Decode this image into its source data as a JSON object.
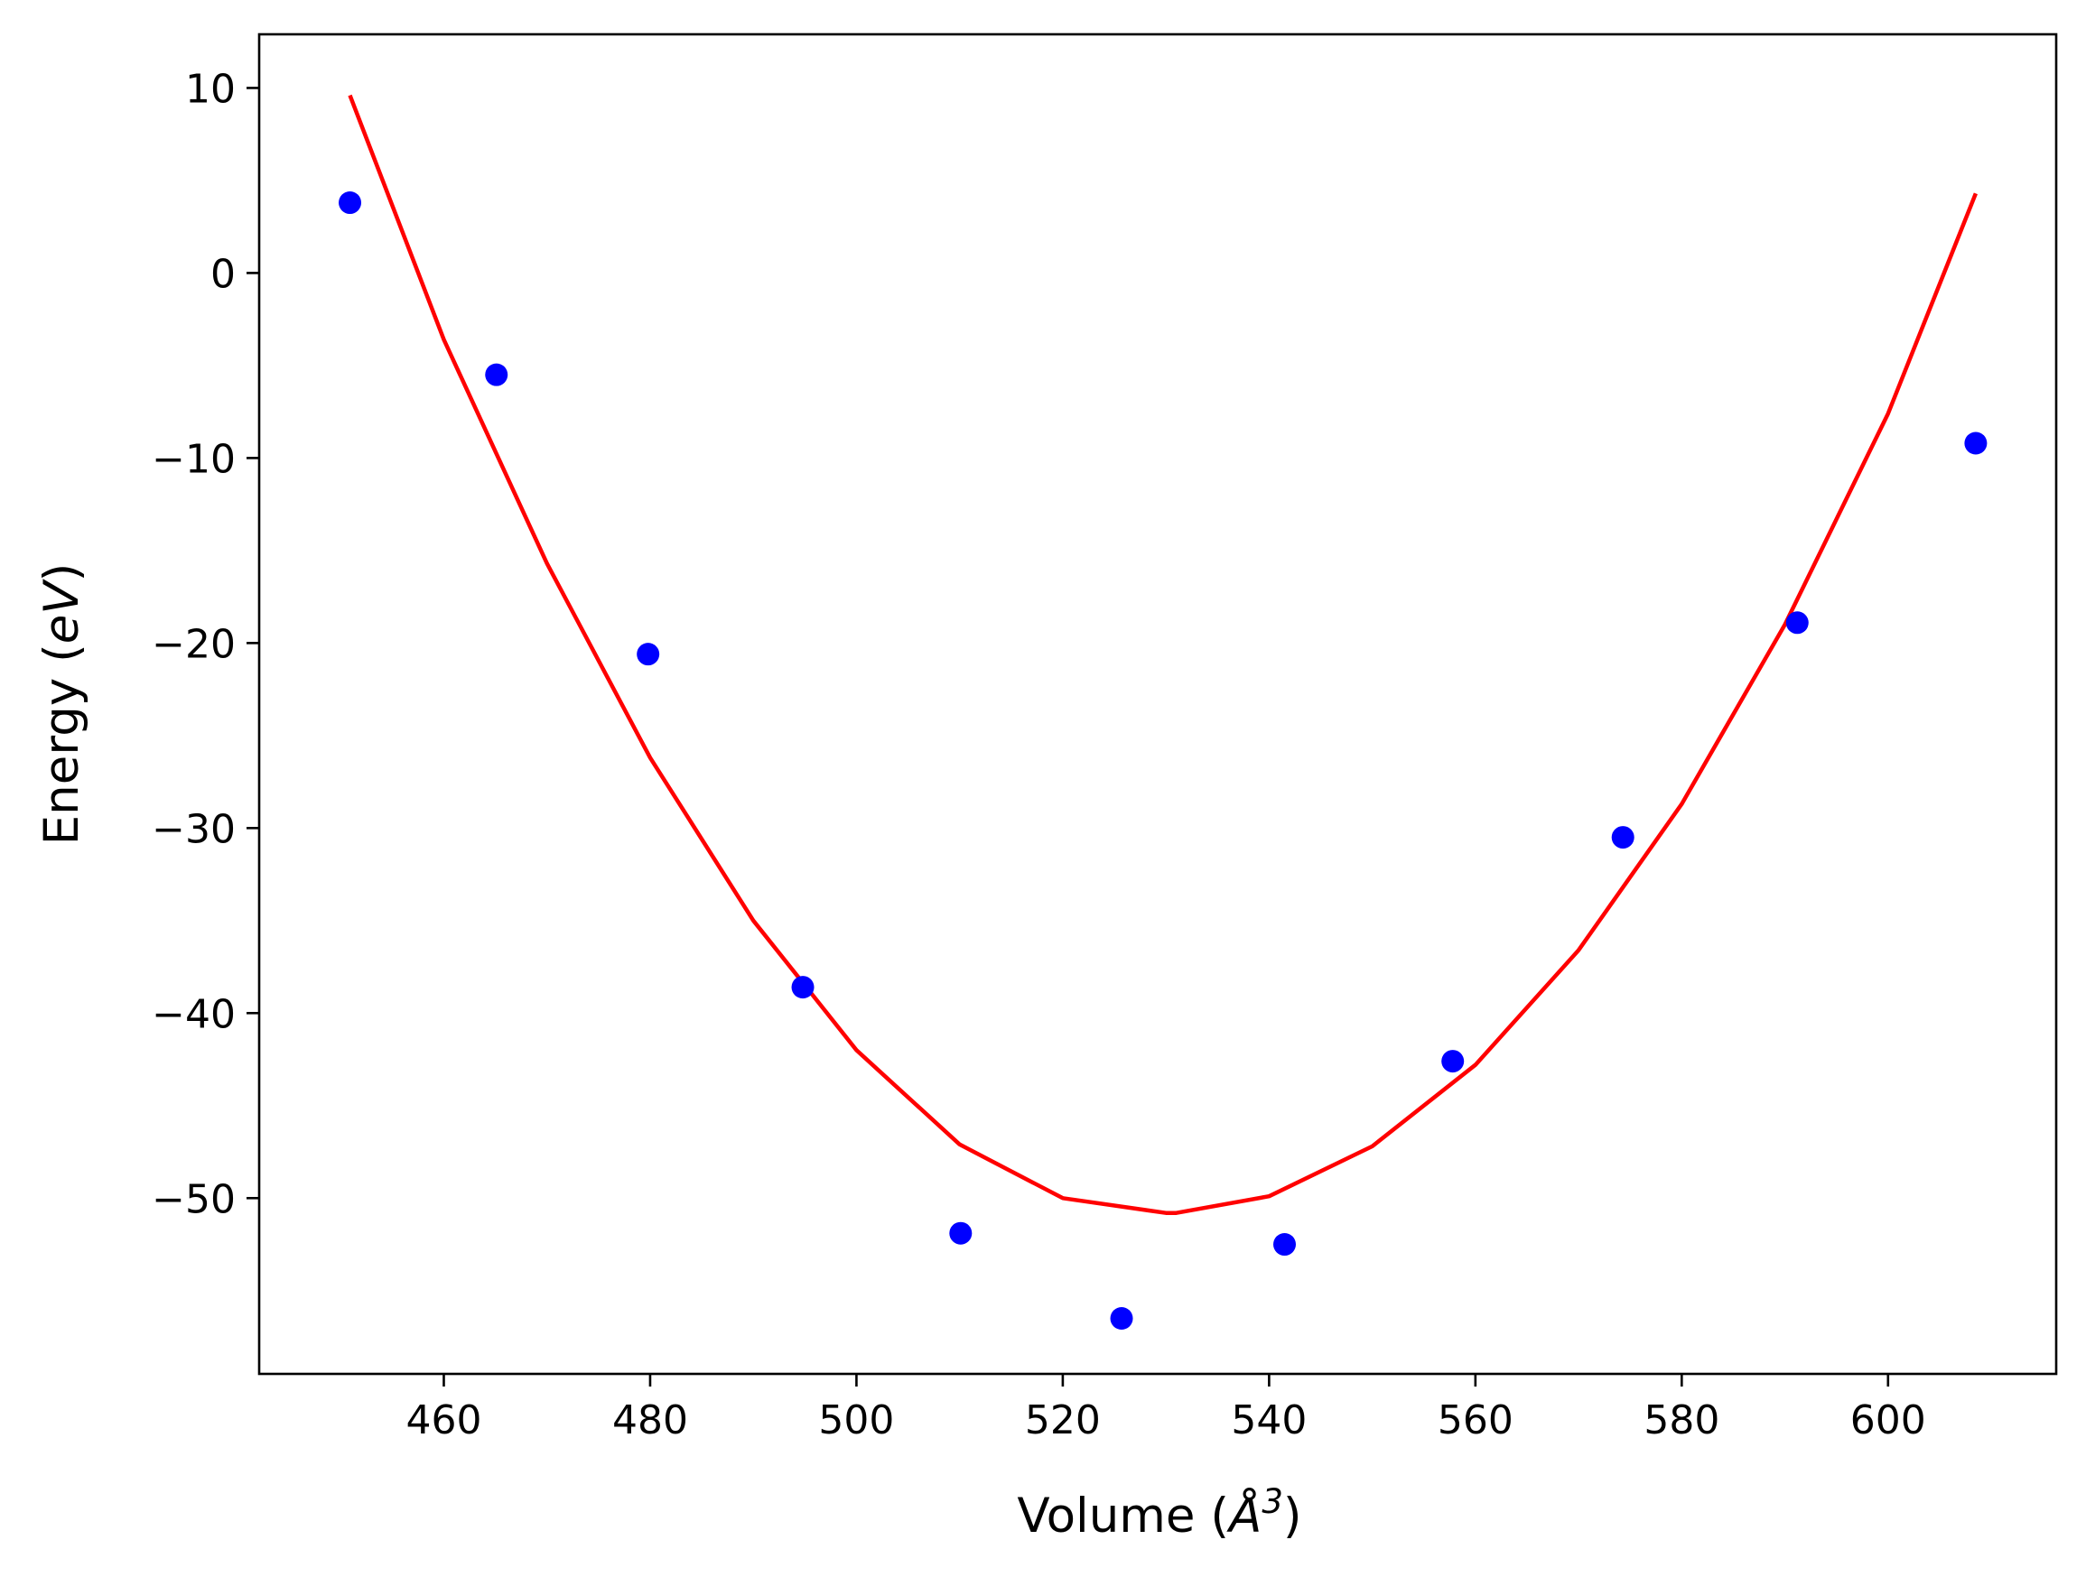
{
  "chart_data": {
    "type": "scatter",
    "title": "",
    "xlabel": "Volume (",
    "xlabel_symbol": "Å",
    "xlabel_sup": "3",
    "xlabel_close": ")",
    "ylabel": "Energy (",
    "ylabel_unit": "eV",
    "ylabel_close": ")",
    "xlim": [
      442.1,
      616.3
    ],
    "ylim": [
      -59.5,
      12.9
    ],
    "xticks": [
      460,
      480,
      500,
      520,
      540,
      560,
      580,
      600
    ],
    "yticks": [
      10,
      0,
      -10,
      -20,
      -30,
      -40,
      -50
    ],
    "ytick_labels": [
      "10",
      "0",
      "−10",
      "−20",
      "−30",
      "−40",
      "−50"
    ],
    "grid": false,
    "series": [
      {
        "kind": "points",
        "color": "#0000ff",
        "x": [
          450.9,
          465.1,
          479.8,
          494.8,
          510.1,
          525.7,
          541.5,
          557.8,
          574.3,
          591.2,
          608.5
        ],
        "y": [
          3.8,
          -5.5,
          -20.6,
          -38.6,
          -51.9,
          -56.5,
          -52.5,
          -42.6,
          -30.5,
          -18.9,
          -9.2
        ]
      },
      {
        "kind": "fit-line",
        "color": "#ff0000",
        "x": [
          450.9,
          460,
          470,
          480,
          490,
          500,
          510,
          520,
          530,
          531,
          540,
          550,
          560,
          570,
          580,
          590,
          600,
          608.5
        ],
        "y": [
          9.6,
          -3.6,
          -15.7,
          -26.2,
          -35.0,
          -42.0,
          -47.1,
          -50.0,
          -50.8,
          -50.8,
          -49.9,
          -47.2,
          -42.8,
          -36.6,
          -28.7,
          -19.0,
          -7.6,
          4.3
        ]
      }
    ]
  }
}
